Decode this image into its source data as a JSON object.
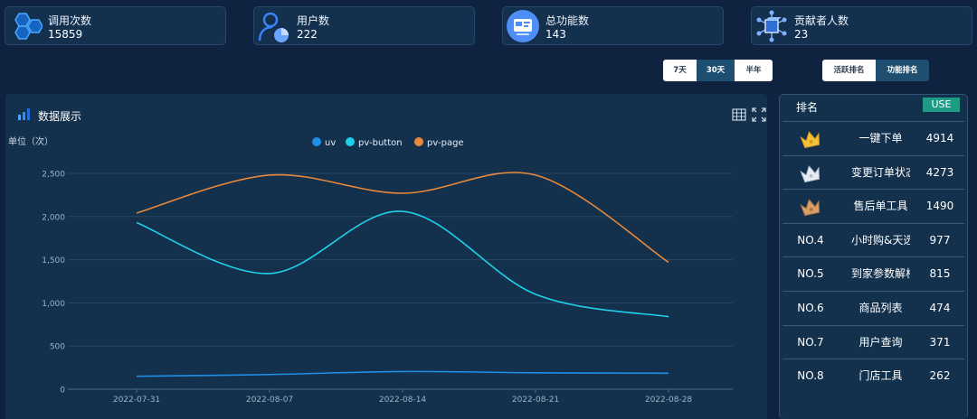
{
  "stats": [
    {
      "label": "调用次数",
      "value": "15859",
      "icon": "hexagon-cluster-icon"
    },
    {
      "label": "用户数",
      "value": "222",
      "icon": "user-pie-icon"
    },
    {
      "label": "总功能数",
      "value": "143",
      "icon": "function-card-icon"
    },
    {
      "label": "贡献者人数",
      "value": "23",
      "icon": "network-cube-icon"
    }
  ],
  "range_tabs": [
    "7天",
    "30天",
    "半年"
  ],
  "range_selected": "30天",
  "rank_tabs": [
    "活跃排名",
    "功能排名"
  ],
  "rank_selected": "功能排名",
  "panel": {
    "title": "数据展示"
  },
  "colors": {
    "uv": "#1f8fe5",
    "pv_button": "#1ed0e8",
    "pv_page": "#e8893a",
    "accent": "#1e9b85"
  },
  "chart_data": {
    "type": "line",
    "ylabel": "单位（次）",
    "x": [
      "2022-07-31",
      "2022-08-07",
      "2022-08-14",
      "2022-08-21",
      "2022-08-28"
    ],
    "ylim": [
      0,
      2500
    ],
    "yticks": [
      "0",
      "500",
      "1,000",
      "1,500",
      "2,000",
      "2,500"
    ],
    "legend_position": "top-center",
    "series": [
      {
        "name": "uv",
        "values": [
          150,
          170,
          205,
          190,
          185
        ]
      },
      {
        "name": "pv-button",
        "values": [
          1930,
          1340,
          2060,
          1100,
          840
        ]
      },
      {
        "name": "pv-page",
        "values": [
          2040,
          2480,
          2270,
          2480,
          1470
        ]
      }
    ]
  },
  "ranking": {
    "header": "排名",
    "badge": "USE",
    "rows": [
      {
        "pos": "",
        "medal": "gold",
        "name": "一键下单",
        "count": "4914"
      },
      {
        "pos": "",
        "medal": "silver",
        "name": "变更订单状态",
        "count": "4273"
      },
      {
        "pos": "",
        "medal": "bronze",
        "name": "售后单工具",
        "count": "1490"
      },
      {
        "pos": "NO.4",
        "medal": "",
        "name": "小时购&天选",
        "count": "977"
      },
      {
        "pos": "NO.5",
        "medal": "",
        "name": "到家参数解析",
        "count": "815"
      },
      {
        "pos": "NO.6",
        "medal": "",
        "name": "商品列表",
        "count": "474"
      },
      {
        "pos": "NO.7",
        "medal": "",
        "name": "用户查询",
        "count": "371"
      },
      {
        "pos": "NO.8",
        "medal": "",
        "name": "门店工具",
        "count": "262"
      }
    ]
  }
}
